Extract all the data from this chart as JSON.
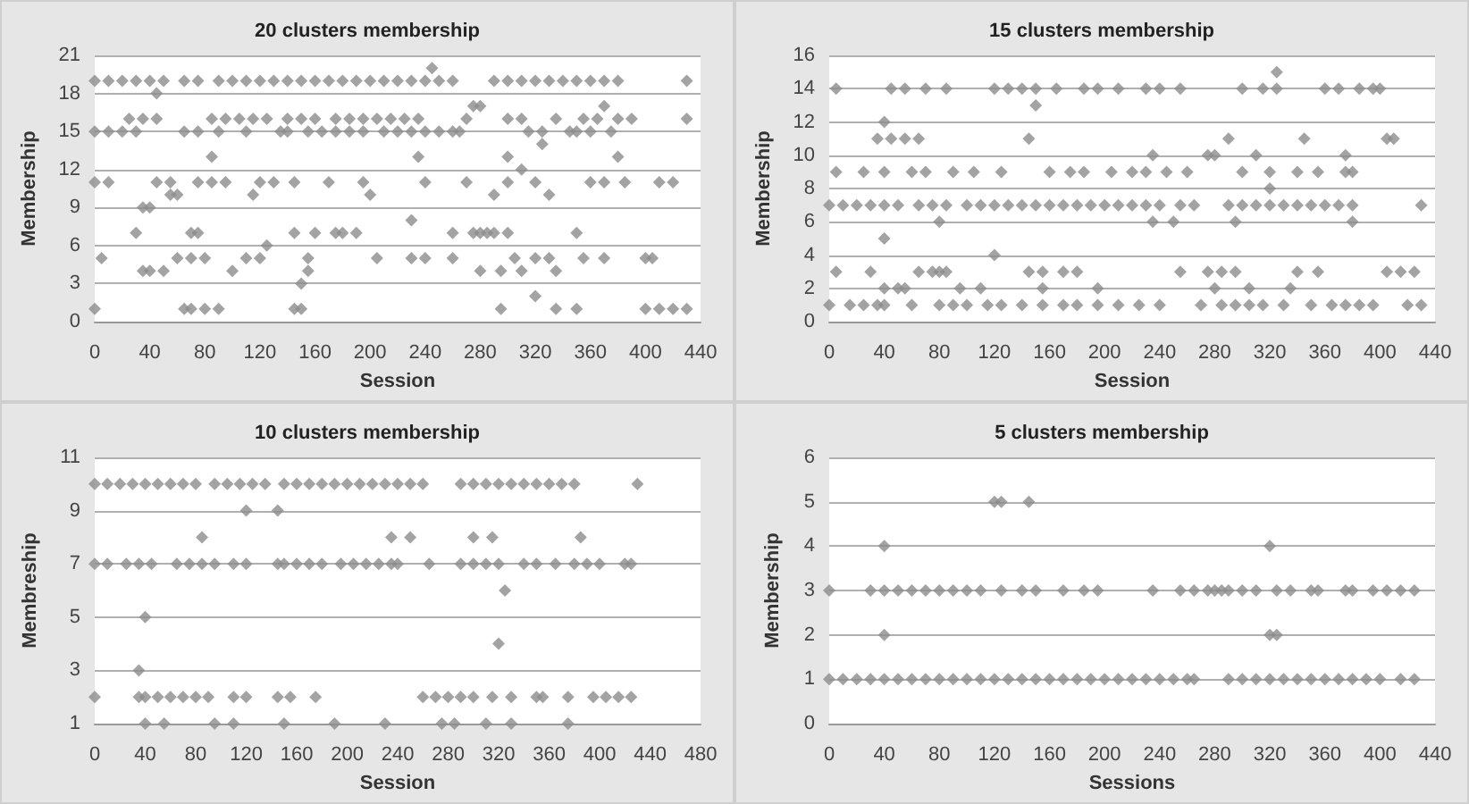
{
  "chart_data": [
    {
      "type": "scatter",
      "title": "20 clusters membership",
      "xlabel": "Session",
      "ylabel": "Membership",
      "xlim": [
        0,
        440
      ],
      "xticks": [
        0,
        40,
        80,
        120,
        160,
        200,
        240,
        280,
        320,
        360,
        400,
        440
      ],
      "ylim": [
        0,
        21
      ],
      "yticks": [
        0,
        3,
        6,
        9,
        12,
        15,
        18,
        21
      ],
      "grid": "y",
      "marker": "diamond",
      "series": [
        {
          "color": "#8c8c8c",
          "x": [
            0,
            10,
            20,
            30,
            40,
            50,
            65,
            75,
            90,
            100,
            110,
            120,
            130,
            140,
            150,
            160,
            170,
            180,
            190,
            200,
            210,
            220,
            230,
            240,
            250,
            260,
            290,
            300,
            310,
            320,
            330,
            340,
            350,
            360,
            370,
            380,
            430
          ],
          "values": [
            19,
            19,
            19,
            19,
            19,
            19,
            19,
            19,
            19,
            19,
            19,
            19,
            19,
            19,
            19,
            19,
            19,
            19,
            19,
            19,
            19,
            19,
            19,
            19,
            19,
            19,
            19,
            19,
            19,
            19,
            19,
            19,
            19,
            19,
            19,
            19,
            19
          ]
        },
        {
          "color": "#8c8c8c",
          "x": [
            275,
            280,
            370
          ],
          "values": [
            17,
            17,
            17
          ]
        },
        {
          "color": "#8c8c8c",
          "x": [
            25,
            35,
            45,
            85,
            95,
            105,
            115,
            125,
            140,
            150,
            160,
            175,
            185,
            195,
            205,
            215,
            225,
            235,
            270,
            300,
            310,
            335,
            355,
            365,
            380,
            390,
            430
          ],
          "values": [
            16,
            16,
            16,
            16,
            16,
            16,
            16,
            16,
            16,
            16,
            16,
            16,
            16,
            16,
            16,
            16,
            16,
            16,
            16,
            16,
            16,
            16,
            16,
            16,
            16,
            16,
            16
          ]
        },
        {
          "color": "#8c8c8c",
          "x": [
            0,
            10,
            20,
            30,
            65,
            75,
            90,
            110,
            135,
            140,
            155,
            165,
            175,
            185,
            195,
            210,
            220,
            230,
            240,
            250,
            260,
            265,
            315,
            325,
            345,
            350,
            360,
            375
          ],
          "values": [
            15,
            15,
            15,
            15,
            15,
            15,
            15,
            15,
            15,
            15,
            15,
            15,
            15,
            15,
            15,
            15,
            15,
            15,
            15,
            15,
            15,
            15,
            15,
            15,
            15,
            15,
            15,
            15
          ]
        },
        {
          "color": "#8c8c8c",
          "x": [
            85,
            235,
            300,
            380
          ],
          "values": [
            13,
            13,
            13,
            13
          ]
        },
        {
          "color": "#8c8c8c",
          "x": [
            0,
            10,
            45,
            55,
            75,
            85,
            95,
            120,
            130,
            145,
            170,
            195,
            240,
            270,
            300,
            320,
            360,
            370,
            385,
            410,
            420
          ],
          "values": [
            11,
            11,
            11,
            11,
            11,
            11,
            11,
            11,
            11,
            11,
            11,
            11,
            11,
            11,
            11,
            11,
            11,
            11,
            11,
            11,
            11
          ]
        },
        {
          "color": "#8c8c8c",
          "x": [
            55,
            60,
            115,
            200,
            290,
            330
          ],
          "values": [
            10,
            10,
            10,
            10,
            10,
            10
          ]
        },
        {
          "color": "#8c8c8c",
          "x": [
            35,
            40
          ],
          "values": [
            9,
            9
          ]
        },
        {
          "color": "#8c8c8c",
          "x": [
            30,
            70,
            75,
            145,
            160,
            175,
            180,
            190,
            260,
            275,
            280,
            285,
            290,
            300,
            350
          ],
          "values": [
            7,
            7,
            7,
            7,
            7,
            7,
            7,
            7,
            7,
            7,
            7,
            7,
            7,
            7,
            7
          ]
        },
        {
          "color": "#8c8c8c",
          "x": [
            5,
            60,
            70,
            80,
            110,
            120,
            155,
            205,
            230,
            240,
            260,
            305,
            320,
            330,
            355,
            370,
            400,
            405
          ],
          "values": [
            5,
            5,
            5,
            5,
            5,
            5,
            5,
            5,
            5,
            5,
            5,
            5,
            5,
            5,
            5,
            5,
            5,
            5
          ]
        },
        {
          "color": "#8c8c8c",
          "x": [
            35,
            40,
            50,
            100,
            155,
            280,
            295,
            310,
            335
          ],
          "values": [
            4,
            4,
            4,
            4,
            4,
            4,
            4,
            4,
            4
          ]
        },
        {
          "color": "#8c8c8c",
          "x": [
            0,
            65,
            70,
            80,
            90,
            145,
            150,
            295,
            335,
            350,
            400,
            410,
            420,
            430
          ],
          "values": [
            1,
            1,
            1,
            1,
            1,
            1,
            1,
            1,
            1,
            1,
            1,
            1,
            1,
            1
          ]
        },
        {
          "color": "#8c8c8c",
          "x": [
            245,
            45,
            325,
            310,
            230,
            125,
            150,
            320
          ],
          "values": [
            20,
            18,
            14,
            12,
            8,
            6,
            3,
            2
          ]
        }
      ]
    },
    {
      "type": "scatter",
      "title": "15 clusters membership",
      "xlabel": "Session",
      "ylabel": "Membership",
      "xlim": [
        0,
        440
      ],
      "xticks": [
        0,
        40,
        80,
        120,
        160,
        200,
        240,
        280,
        320,
        360,
        400,
        440
      ],
      "ylim": [
        0,
        16
      ],
      "yticks": [
        0,
        2,
        4,
        6,
        8,
        10,
        12,
        14,
        16
      ],
      "grid": "y",
      "marker": "diamond",
      "series": [
        {
          "color": "#8c8c8c",
          "x": [
            5,
            45,
            55,
            70,
            85,
            120,
            130,
            140,
            150,
            165,
            185,
            195,
            210,
            230,
            240,
            255,
            300,
            315,
            325,
            360,
            370,
            385,
            395,
            400
          ],
          "values": [
            14,
            14,
            14,
            14,
            14,
            14,
            14,
            14,
            14,
            14,
            14,
            14,
            14,
            14,
            14,
            14,
            14,
            14,
            14,
            14,
            14,
            14,
            14,
            14
          ]
        },
        {
          "color": "#8c8c8c",
          "x": [
            35,
            45,
            55,
            65,
            145,
            290,
            345,
            405,
            410
          ],
          "values": [
            11,
            11,
            11,
            11,
            11,
            11,
            11,
            11,
            11
          ]
        },
        {
          "color": "#8c8c8c",
          "x": [
            235,
            275,
            280,
            310,
            375
          ],
          "values": [
            10,
            10,
            10,
            10,
            10
          ]
        },
        {
          "color": "#8c8c8c",
          "x": [
            5,
            25,
            40,
            60,
            70,
            90,
            105,
            125,
            160,
            175,
            185,
            205,
            220,
            230,
            245,
            260,
            300,
            320,
            340,
            355,
            375,
            380
          ],
          "values": [
            9,
            9,
            9,
            9,
            9,
            9,
            9,
            9,
            9,
            9,
            9,
            9,
            9,
            9,
            9,
            9,
            9,
            9,
            9,
            9,
            9,
            9
          ]
        },
        {
          "color": "#8c8c8c",
          "x": [
            0,
            10,
            20,
            30,
            40,
            50,
            65,
            75,
            85,
            100,
            110,
            120,
            130,
            140,
            150,
            160,
            170,
            180,
            190,
            200,
            210,
            220,
            230,
            240,
            255,
            265,
            290,
            300,
            310,
            320,
            330,
            340,
            350,
            360,
            370,
            380,
            430
          ],
          "values": [
            7,
            7,
            7,
            7,
            7,
            7,
            7,
            7,
            7,
            7,
            7,
            7,
            7,
            7,
            7,
            7,
            7,
            7,
            7,
            7,
            7,
            7,
            7,
            7,
            7,
            7,
            7,
            7,
            7,
            7,
            7,
            7,
            7,
            7,
            7,
            7,
            7
          ]
        },
        {
          "color": "#8c8c8c",
          "x": [
            80,
            235,
            250,
            295,
            380
          ],
          "values": [
            6,
            6,
            6,
            6,
            6
          ]
        },
        {
          "color": "#8c8c8c",
          "x": [
            5,
            30,
            65,
            75,
            80,
            85,
            145,
            155,
            170,
            180,
            255,
            275,
            285,
            295,
            340,
            355,
            405,
            415,
            425
          ],
          "values": [
            3,
            3,
            3,
            3,
            3,
            3,
            3,
            3,
            3,
            3,
            3,
            3,
            3,
            3,
            3,
            3,
            3,
            3,
            3
          ]
        },
        {
          "color": "#8c8c8c",
          "x": [
            40,
            50,
            55,
            95,
            110,
            155,
            195,
            280,
            305,
            335
          ],
          "values": [
            2,
            2,
            2,
            2,
            2,
            2,
            2,
            2,
            2,
            2
          ]
        },
        {
          "color": "#8c8c8c",
          "x": [
            0,
            15,
            25,
            35,
            40,
            60,
            80,
            90,
            100,
            115,
            125,
            140,
            155,
            170,
            180,
            195,
            210,
            225,
            240,
            270,
            285,
            295,
            305,
            315,
            330,
            350,
            365,
            375,
            385,
            395,
            420,
            430
          ],
          "values": [
            1,
            1,
            1,
            1,
            1,
            1,
            1,
            1,
            1,
            1,
            1,
            1,
            1,
            1,
            1,
            1,
            1,
            1,
            1,
            1,
            1,
            1,
            1,
            1,
            1,
            1,
            1,
            1,
            1,
            1,
            1,
            1
          ]
        },
        {
          "color": "#8c8c8c",
          "x": [
            325,
            150,
            40,
            320,
            40,
            120
          ],
          "values": [
            15,
            13,
            12,
            8,
            5,
            4
          ]
        }
      ]
    },
    {
      "type": "scatter",
      "title": "10 clusters membership",
      "xlabel": "Session",
      "ylabel": "Membreship",
      "xlim": [
        0,
        480
      ],
      "xticks": [
        0,
        40,
        80,
        120,
        160,
        200,
        240,
        280,
        320,
        360,
        400,
        440,
        480
      ],
      "ylim": [
        1,
        11
      ],
      "yticks": [
        1,
        3,
        5,
        7,
        9,
        11
      ],
      "grid": "y",
      "marker": "diamond",
      "series": [
        {
          "color": "#8c8c8c",
          "x": [
            0,
            10,
            20,
            30,
            40,
            50,
            60,
            70,
            80,
            95,
            105,
            115,
            125,
            135,
            150,
            160,
            170,
            180,
            190,
            200,
            210,
            220,
            230,
            240,
            250,
            260,
            290,
            300,
            310,
            320,
            330,
            340,
            350,
            360,
            370,
            380,
            430
          ],
          "values": [
            10,
            10,
            10,
            10,
            10,
            10,
            10,
            10,
            10,
            10,
            10,
            10,
            10,
            10,
            10,
            10,
            10,
            10,
            10,
            10,
            10,
            10,
            10,
            10,
            10,
            10,
            10,
            10,
            10,
            10,
            10,
            10,
            10,
            10,
            10,
            10,
            10
          ]
        },
        {
          "color": "#8c8c8c",
          "x": [
            120,
            145
          ],
          "values": [
            9,
            9
          ]
        },
        {
          "color": "#8c8c8c",
          "x": [
            85,
            235,
            250,
            300,
            315,
            385
          ],
          "values": [
            8,
            8,
            8,
            8,
            8,
            8
          ]
        },
        {
          "color": "#8c8c8c",
          "x": [
            0,
            10,
            25,
            35,
            45,
            65,
            75,
            85,
            95,
            110,
            120,
            145,
            150,
            160,
            170,
            180,
            195,
            205,
            215,
            225,
            235,
            240,
            265,
            290,
            300,
            310,
            320,
            340,
            350,
            365,
            380,
            390,
            400,
            420,
            425
          ],
          "values": [
            7,
            7,
            7,
            7,
            7,
            7,
            7,
            7,
            7,
            7,
            7,
            7,
            7,
            7,
            7,
            7,
            7,
            7,
            7,
            7,
            7,
            7,
            7,
            7,
            7,
            7,
            7,
            7,
            7,
            7,
            7,
            7,
            7,
            7,
            7
          ]
        },
        {
          "color": "#8c8c8c",
          "x": [
            0,
            35,
            40,
            50,
            60,
            70,
            80,
            90,
            110,
            120,
            145,
            155,
            175,
            260,
            270,
            280,
            290,
            300,
            315,
            330,
            350,
            355,
            375,
            395,
            405,
            415,
            425
          ],
          "values": [
            2,
            2,
            2,
            2,
            2,
            2,
            2,
            2,
            2,
            2,
            2,
            2,
            2,
            2,
            2,
            2,
            2,
            2,
            2,
            2,
            2,
            2,
            2,
            2,
            2,
            2,
            2
          ]
        },
        {
          "color": "#8c8c8c",
          "x": [
            40,
            55,
            95,
            110,
            150,
            190,
            230,
            275,
            285,
            310,
            330,
            375
          ],
          "values": [
            1,
            1,
            1,
            1,
            1,
            1,
            1,
            1,
            1,
            1,
            1,
            1
          ]
        },
        {
          "color": "#8c8c8c",
          "x": [
            325,
            40,
            320,
            35
          ],
          "values": [
            6,
            5,
            4,
            3
          ]
        }
      ]
    },
    {
      "type": "scatter",
      "title": "5 clusters membership",
      "xlabel": "Sessions",
      "ylabel": "Membership",
      "xlim": [
        0,
        440
      ],
      "xticks": [
        0,
        40,
        80,
        120,
        160,
        200,
        240,
        280,
        320,
        360,
        400,
        440
      ],
      "ylim": [
        0,
        6
      ],
      "yticks": [
        0,
        1,
        2,
        3,
        4,
        5,
        6
      ],
      "grid": "y",
      "marker": "diamond",
      "series": [
        {
          "color": "#8c8c8c",
          "x": [
            120,
            125,
            145
          ],
          "values": [
            5,
            5,
            5
          ]
        },
        {
          "color": "#8c8c8c",
          "x": [
            40,
            320
          ],
          "values": [
            4,
            4
          ]
        },
        {
          "color": "#8c8c8c",
          "x": [
            0,
            30,
            40,
            50,
            60,
            70,
            80,
            90,
            100,
            110,
            125,
            140,
            150,
            170,
            185,
            195,
            235,
            255,
            265,
            275,
            280,
            285,
            290,
            300,
            310,
            325,
            335,
            350,
            355,
            375,
            380,
            395,
            405,
            415,
            425
          ],
          "values": [
            3,
            3,
            3,
            3,
            3,
            3,
            3,
            3,
            3,
            3,
            3,
            3,
            3,
            3,
            3,
            3,
            3,
            3,
            3,
            3,
            3,
            3,
            3,
            3,
            3,
            3,
            3,
            3,
            3,
            3,
            3,
            3,
            3,
            3,
            3
          ]
        },
        {
          "color": "#8c8c8c",
          "x": [
            40,
            320,
            325
          ],
          "values": [
            2,
            2,
            2
          ]
        },
        {
          "color": "#8c8c8c",
          "x": [
            0,
            10,
            20,
            30,
            40,
            50,
            60,
            70,
            80,
            90,
            100,
            110,
            120,
            130,
            140,
            150,
            160,
            170,
            180,
            190,
            200,
            210,
            220,
            230,
            240,
            250,
            260,
            265,
            290,
            300,
            310,
            320,
            330,
            340,
            350,
            360,
            370,
            380,
            390,
            400,
            415,
            425
          ],
          "values": [
            1,
            1,
            1,
            1,
            1,
            1,
            1,
            1,
            1,
            1,
            1,
            1,
            1,
            1,
            1,
            1,
            1,
            1,
            1,
            1,
            1,
            1,
            1,
            1,
            1,
            1,
            1,
            1,
            1,
            1,
            1,
            1,
            1,
            1,
            1,
            1,
            1,
            1,
            1,
            1,
            1,
            1
          ]
        }
      ]
    }
  ]
}
